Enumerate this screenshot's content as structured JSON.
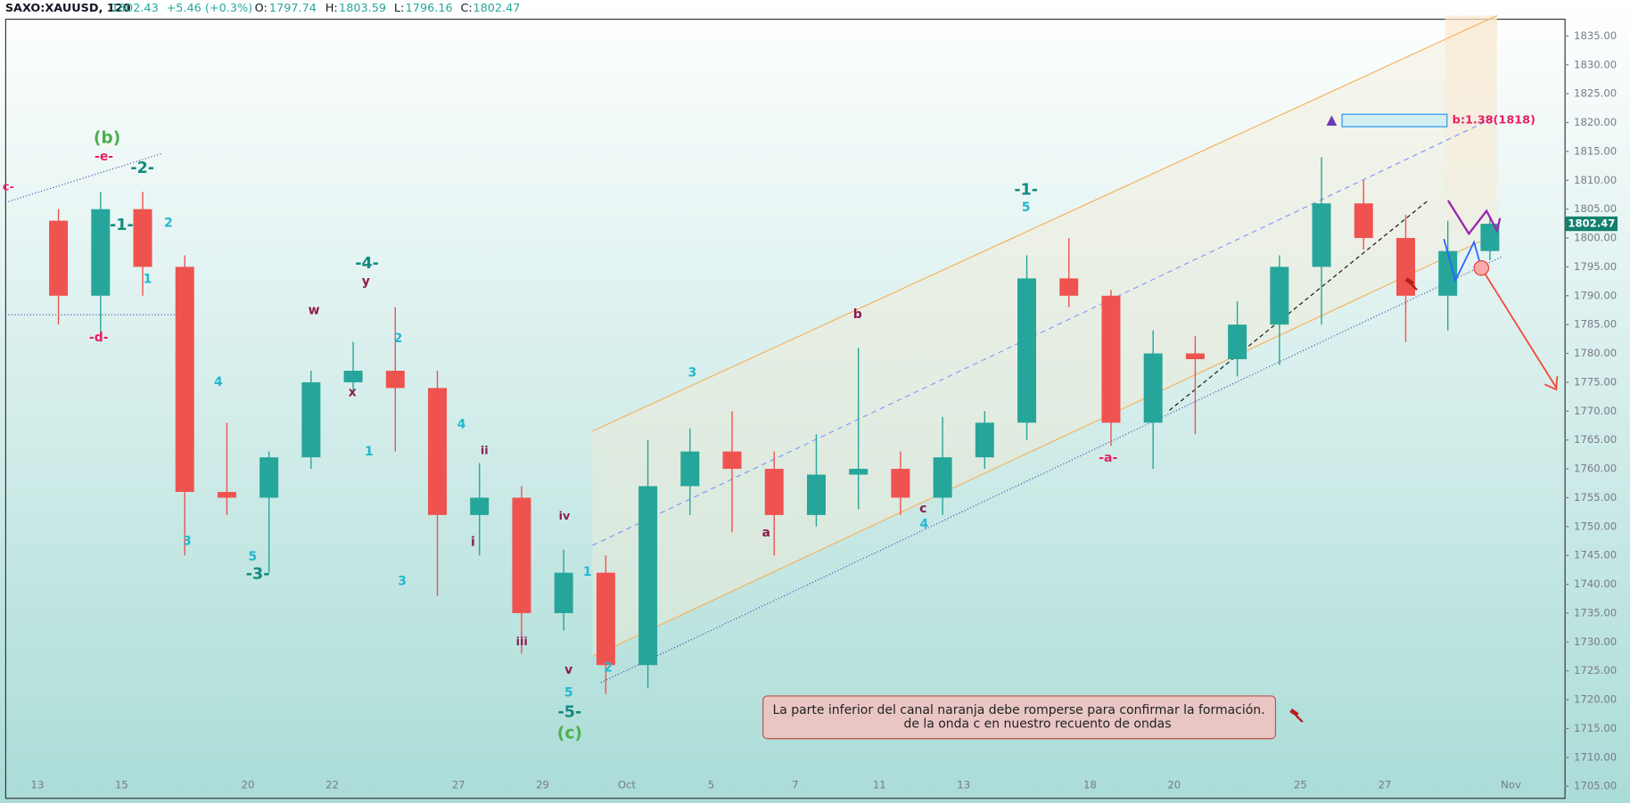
{
  "header": {
    "symbol": "SAXO:XAUUSD, 120",
    "price": "1802.43",
    "change": "+5.46 (+0.3%)",
    "o_label": "O:",
    "h_label": "H:",
    "l_label": "L:",
    "c_label": "C:"
  },
  "chart_data": {
    "type": "candlestick",
    "categories": [
      "13",
      null,
      "15",
      null,
      null,
      "20",
      null,
      "22",
      null,
      null,
      "27",
      null,
      "29",
      null,
      "Oct",
      null,
      "5",
      null,
      "7",
      null,
      "11",
      null,
      "13",
      null,
      null,
      "18",
      null,
      "20",
      null,
      null,
      "25",
      null,
      "27",
      null,
      null,
      "Nov"
    ],
    "open": [
      1803,
      1790,
      1805,
      1795,
      1756,
      1755,
      1762,
      1775,
      1777,
      1774,
      1752,
      1755,
      1735,
      1742,
      1726,
      1757,
      1763,
      1760,
      1752,
      1759,
      1760,
      1755,
      1762,
      1768,
      1793,
      1790,
      1768,
      1780,
      1779,
      1785,
      1795,
      1806,
      1800,
      1790,
      1797.74,
      null
    ],
    "high": [
      1805,
      1808,
      1808,
      1797,
      1768,
      1763,
      1777,
      1782,
      1788,
      1777,
      1761,
      1757,
      1746,
      1745,
      1765,
      1767,
      1770,
      1763,
      1766,
      1781,
      1763,
      1769,
      1770,
      1797,
      1800,
      1791,
      1784,
      1783,
      1789,
      1797,
      1814,
      1810,
      1804,
      1803,
      1803.59,
      null
    ],
    "low": [
      1785,
      1782,
      1790,
      1745,
      1752,
      1742,
      1760,
      1773,
      1763,
      1738,
      1745,
      1728,
      1732,
      1721,
      1722,
      1752,
      1749,
      1745,
      1750,
      1753,
      1752,
      1752,
      1760,
      1765,
      1788,
      1764,
      1760,
      1766,
      1776,
      1778,
      1785,
      1798,
      1782,
      1784,
      1796.16,
      null
    ],
    "close": [
      1790,
      1805,
      1795,
      1756,
      1755,
      1762,
      1775,
      1777,
      1774,
      1752,
      1755,
      1735,
      1742,
      1726,
      1757,
      1763,
      1760,
      1752,
      1759,
      1760,
      1755,
      1762,
      1768,
      1793,
      1790,
      1768,
      1780,
      1779,
      1785,
      1795,
      1806,
      1800,
      1790,
      1797.74,
      1802.47,
      null
    ],
    "up_color": "#26a69a",
    "down_color": "#ef5350",
    "grid": false,
    "ylim": [
      1703,
      1838
    ],
    "yticks": [
      {
        "value": 1835,
        "label": "1835.00"
      },
      {
        "value": 1830,
        "label": "1830.00"
      },
      {
        "value": 1825,
        "label": "1825.00"
      },
      {
        "value": 1820,
        "label": "1820.00"
      },
      {
        "value": 1815,
        "label": "1815.00"
      },
      {
        "value": 1810,
        "label": "1810.00"
      },
      {
        "value": 1805,
        "label": "1805.00"
      },
      {
        "value": 1800,
        "label": "1800.00"
      },
      {
        "value": 1795,
        "label": "1795.00"
      },
      {
        "value": 1790,
        "label": "1790.00"
      },
      {
        "value": 1785,
        "label": "1785.00"
      },
      {
        "value": 1780,
        "label": "1780.00"
      },
      {
        "value": 1775,
        "label": "1775.00"
      },
      {
        "value": 1770,
        "label": "1770.00"
      },
      {
        "value": 1765,
        "label": "1765.00"
      },
      {
        "value": 1760,
        "label": "1760.00"
      },
      {
        "value": 1755,
        "label": "1755.00"
      },
      {
        "value": 1750,
        "label": "1750.00"
      },
      {
        "value": 1745,
        "label": "1745.00"
      },
      {
        "value": 1740,
        "label": "1740.00"
      },
      {
        "value": 1735,
        "label": "1735.00"
      },
      {
        "value": 1730,
        "label": "1730.00"
      },
      {
        "value": 1725,
        "label": "1725.00"
      },
      {
        "value": 1720,
        "label": "1720.00"
      },
      {
        "value": 1715,
        "label": "1715.00"
      },
      {
        "value": 1710,
        "label": "1710.00"
      },
      {
        "value": 1705,
        "label": "1705.00"
      }
    ],
    "wave_labels": [
      {
        "text": "c-",
        "color": "#e91e63"
      },
      {
        "text": "(b)",
        "color": "#4caf50"
      },
      {
        "text": "-e-",
        "color": "#e91e63"
      },
      {
        "text": "-2-",
        "color": "#138a7e"
      },
      {
        "text": "-1-",
        "color": "#138a7e"
      },
      {
        "text": "2",
        "color": "#22b8cf"
      },
      {
        "text": "1",
        "color": "#22b8cf"
      },
      {
        "text": "-d-",
        "color": "#e91e63"
      },
      {
        "text": "4",
        "color": "#22b8cf"
      },
      {
        "text": "3",
        "color": "#22b8cf"
      },
      {
        "text": "5",
        "color": "#22b8cf"
      },
      {
        "text": "-3-",
        "color": "#138a7e"
      },
      {
        "text": "w",
        "color": "#8e1b4f"
      },
      {
        "text": "-4-",
        "color": "#138a7e"
      },
      {
        "text": "y",
        "color": "#8e1b4f"
      },
      {
        "text": "x",
        "color": "#8e1b4f"
      },
      {
        "text": "2",
        "color": "#22b8cf"
      },
      {
        "text": "1",
        "color": "#22b8cf"
      },
      {
        "text": "4",
        "color": "#22b8cf"
      },
      {
        "text": "ii",
        "color": "#8e1b4f"
      },
      {
        "text": "i",
        "color": "#8e1b4f"
      },
      {
        "text": "3",
        "color": "#22b8cf"
      },
      {
        "text": "iv",
        "color": "#8e1b4f"
      },
      {
        "text": "1",
        "color": "#22b8cf"
      },
      {
        "text": "iii",
        "color": "#8e1b4f"
      },
      {
        "text": "v",
        "color": "#8e1b4f"
      },
      {
        "text": "5",
        "color": "#22b8cf"
      },
      {
        "text": "-5-",
        "color": "#138a7e"
      },
      {
        "text": "(c)",
        "color": "#4caf50"
      },
      {
        "text": "2",
        "color": "#22b8cf"
      },
      {
        "text": "3",
        "color": "#22b8cf"
      },
      {
        "text": "a",
        "color": "#8e1b4f"
      },
      {
        "text": "b",
        "color": "#8e1b4f"
      },
      {
        "text": "c",
        "color": "#8e1b4f"
      },
      {
        "text": "4",
        "color": "#22b8cf"
      },
      {
        "text": "-1-",
        "color": "#138a7e"
      },
      {
        "text": "5",
        "color": "#22b8cf"
      },
      {
        "text": "-a-",
        "color": "#e91e63"
      }
    ],
    "target_label": "b:1.38(1818)",
    "note": [
      "La parte inferior del canal naranja debe romperse para confirmar la formación.",
      "de la onda c en nuestro recuento de ondas"
    ]
  }
}
